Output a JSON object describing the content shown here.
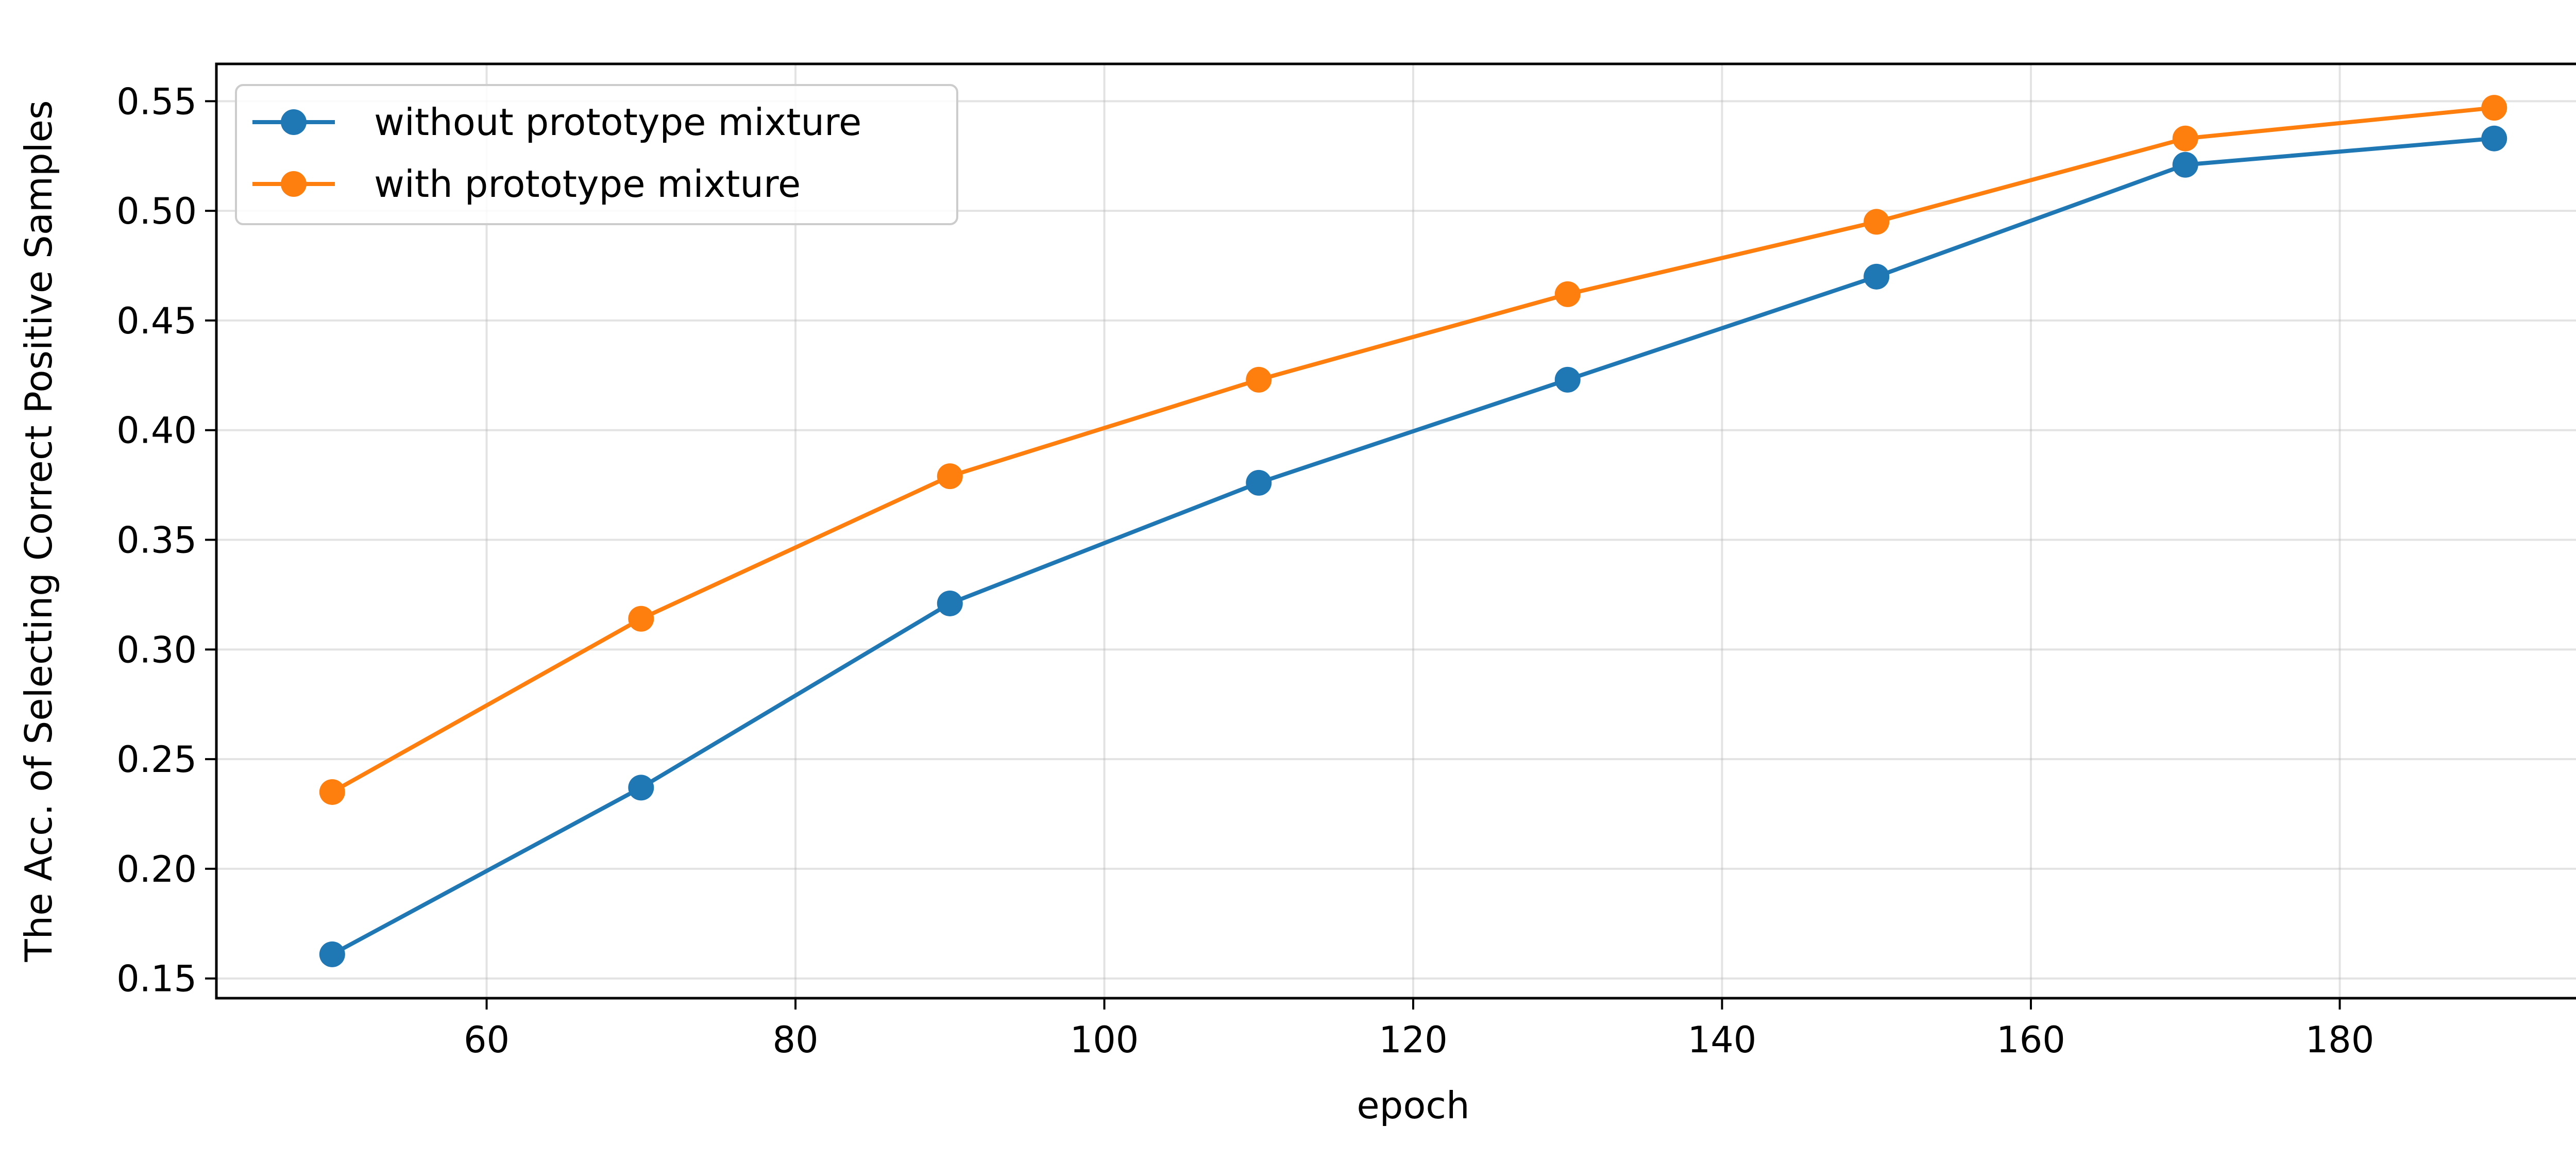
{
  "chart_data": {
    "type": "line",
    "title": "",
    "xlabel": "epoch",
    "ylabel": "The Acc. of Selecting Correct Positive Samples",
    "x": [
      50,
      70,
      90,
      110,
      130,
      150,
      170,
      190
    ],
    "xlim": [
      42.5,
      197.5
    ],
    "ylim": [
      0.141,
      0.567
    ],
    "xticks": [
      60,
      80,
      100,
      120,
      140,
      160,
      180
    ],
    "xtick_labels": [
      "60",
      "80",
      "100",
      "120",
      "140",
      "160",
      "180"
    ],
    "yticks": [
      0.15,
      0.2,
      0.25,
      0.3,
      0.35,
      0.4,
      0.45,
      0.5,
      0.55
    ],
    "ytick_labels": [
      "0.15",
      "0.20",
      "0.25",
      "0.30",
      "0.35",
      "0.40",
      "0.45",
      "0.50",
      "0.55"
    ],
    "grid": true,
    "legend_position": "top-left",
    "series": [
      {
        "name": "without prototype mixture",
        "color": "#1f77b4",
        "marker": "circle",
        "values": [
          0.161,
          0.237,
          0.321,
          0.376,
          0.423,
          0.47,
          0.521,
          0.533
        ]
      },
      {
        "name": "with prototype mixture",
        "color": "#ff7f0e",
        "marker": "circle",
        "values": [
          0.235,
          0.314,
          0.379,
          0.423,
          0.462,
          0.495,
          0.533,
          0.547
        ]
      }
    ]
  }
}
